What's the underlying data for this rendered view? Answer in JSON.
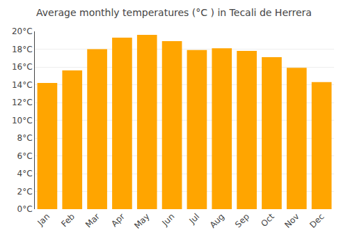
{
  "chart_data": {
    "type": "bar",
    "title": "Average monthly temperatures (°C ) in Tecali de Herrera",
    "categories": [
      "Jan",
      "Feb",
      "Mar",
      "Apr",
      "May",
      "Jun",
      "Jul",
      "Aug",
      "Sep",
      "Oct",
      "Nov",
      "Dec"
    ],
    "values": [
      14.2,
      15.6,
      18.0,
      19.3,
      19.6,
      18.9,
      17.9,
      18.1,
      17.8,
      17.1,
      15.9,
      14.3
    ],
    "color": "#FFA500",
    "ylim": [
      0,
      20
    ],
    "yticks": [
      {
        "value": 0,
        "label": "0°C"
      },
      {
        "value": 2,
        "label": "2°C"
      },
      {
        "value": 4,
        "label": "4°C"
      },
      {
        "value": 6,
        "label": "6°C"
      },
      {
        "value": 8,
        "label": "8°C"
      },
      {
        "value": 10,
        "label": "10°C"
      },
      {
        "value": 12,
        "label": "12°C"
      },
      {
        "value": 14,
        "label": "14°C"
      },
      {
        "value": 16,
        "label": "16°C"
      },
      {
        "value": 18,
        "label": "18°C"
      },
      {
        "value": 20,
        "label": "20°C"
      }
    ],
    "grid": true
  }
}
